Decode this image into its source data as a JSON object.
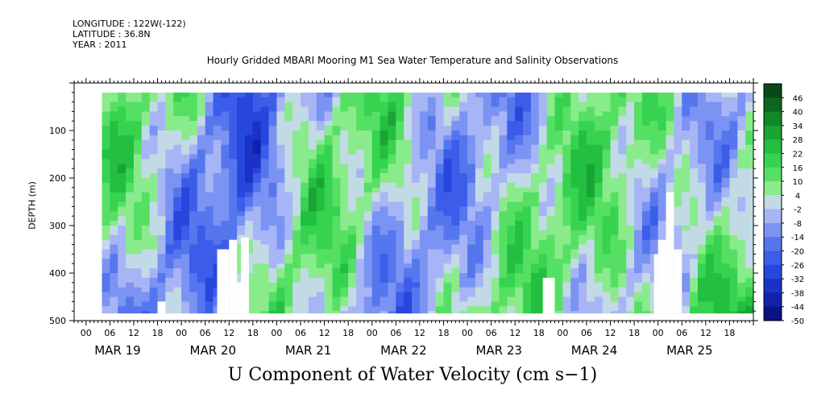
{
  "meta": {
    "longitude": "LONGITUDE : 122W(-122)",
    "latitude": "LATITUDE : 36.8N",
    "year": "YEAR : 2011"
  },
  "colors": {
    "positive_strong": "#0b4a14",
    "positive": "#22c83c",
    "near_zero": "#b8c4f4",
    "negative": "#3050e0",
    "negative_strong": "#0a0f80",
    "missing": "#ffffff"
  },
  "chart_data": {
    "type": "heatmap",
    "title": "Hourly Gridded MBARI Mooring M1 Sea Water Temperature and Salinity Observations",
    "xlabel": "U Component of Water Velocity (cm s−1)",
    "ylabel": "DEPTH (m)",
    "y_ticks": [
      "100",
      "200",
      "300",
      "400",
      "500"
    ],
    "y_tick_values": [
      100,
      200,
      300,
      400,
      500
    ],
    "y_range": [
      500,
      0
    ],
    "x_range_hours": [
      "MAR 18 21:00",
      "MAR 25 23:00"
    ],
    "x_hour_ticks": [
      "00",
      "06",
      "12",
      "18",
      "00",
      "06",
      "12",
      "18",
      "00",
      "06",
      "12",
      "18",
      "00",
      "06",
      "12",
      "18",
      "00",
      "06",
      "12",
      "18",
      "00",
      "06",
      "12",
      "18",
      "00",
      "06",
      "12",
      "18"
    ],
    "x_day_labels": [
      "MAR 19",
      "MAR 20",
      "MAR 21",
      "MAR 22",
      "MAR 23",
      "MAR 24",
      "MAR 25"
    ],
    "colorbar_labels": [
      "46",
      "40",
      "34",
      "28",
      "22",
      "16",
      "10",
      "4",
      "-2",
      "-8",
      "-14",
      "-20",
      "-26",
      "-32",
      "-38",
      "-44",
      "-50"
    ],
    "colorbar_min": -50,
    "colorbar_max": 52,
    "data_depth_range": [
      20,
      485
    ],
    "missing_regions": [
      {
        "day": "MAR 19",
        "hour_start": 18,
        "hour_end": 20,
        "depth_start": 460,
        "depth_end": 485
      },
      {
        "day": "MAR 20",
        "hour_start": 9,
        "hour_end": 12,
        "depth_start": 350,
        "depth_end": 485
      },
      {
        "day": "MAR 20",
        "hour_start": 12,
        "hour_end": 14,
        "depth_start": 330,
        "depth_end": 485
      },
      {
        "day": "MAR 20",
        "hour_start": 14,
        "hour_end": 16,
        "depth_start": 420,
        "depth_end": 485
      },
      {
        "day": "MAR 20",
        "hour_start": 15,
        "hour_end": 17,
        "depth_start": 325,
        "depth_end": 485
      },
      {
        "day": "MAR 23",
        "hour_start": 19,
        "hour_end": 22,
        "depth_start": 410,
        "depth_end": 485
      },
      {
        "day": "MAR 24",
        "hour_start": 23,
        "hour_end": 24,
        "depth_start": 360,
        "depth_end": 485
      },
      {
        "day": "MAR 25",
        "hour_start": 0,
        "hour_end": 2,
        "depth_start": 330,
        "depth_end": 485
      },
      {
        "day": "MAR 25",
        "hour_start": 2,
        "hour_end": 4,
        "depth_start": 230,
        "depth_end": 485
      },
      {
        "day": "MAR 25",
        "hour_start": 4,
        "hour_end": 6,
        "depth_start": 350,
        "depth_end": 485
      }
    ]
  }
}
